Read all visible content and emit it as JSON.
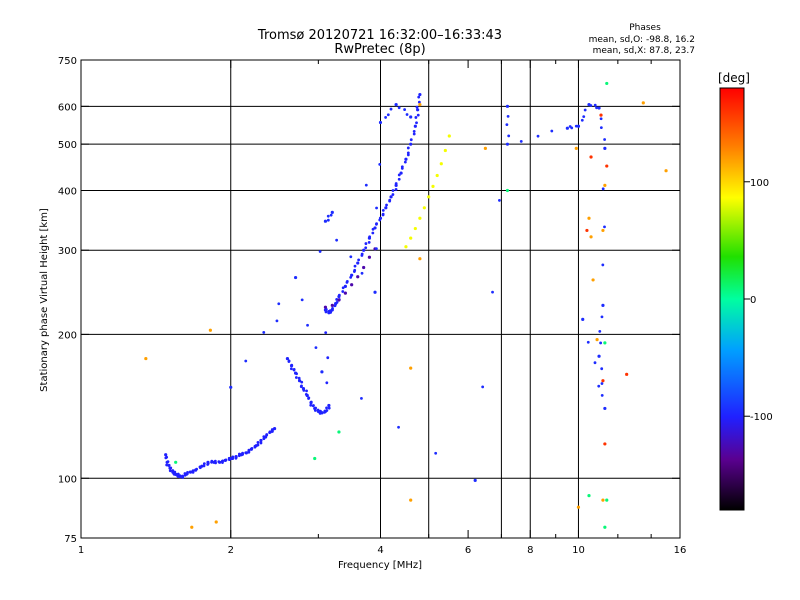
{
  "chart_data": {
    "type": "scatter",
    "title": "Tromsø 20120721 16:32:00–16:33:43",
    "subtitle": "RwPretec (8p)",
    "xlabel": "Frequency [MHz]",
    "ylabel": "Stationary phase Virtual Height [km]",
    "xscale": "log",
    "yscale": "log",
    "xlim": [
      1,
      16
    ],
    "ylim": [
      75,
      750
    ],
    "xticks": [
      1,
      2,
      4,
      6,
      8,
      10,
      16
    ],
    "xtick_labels": [
      "1",
      "2",
      "4",
      "6",
      "8",
      "10",
      "16"
    ],
    "x_minor_ticks": [
      3,
      5,
      7,
      9,
      12,
      14
    ],
    "x_gridlines": [
      2,
      4,
      5,
      7,
      8,
      10
    ],
    "yticks": [
      75,
      100,
      200,
      300,
      400,
      500,
      600,
      750
    ],
    "ytick_labels": [
      "75",
      "100",
      "200",
      "300",
      "400",
      "500",
      "600",
      "750"
    ],
    "y_gridlines": [
      100,
      200,
      300,
      400,
      500,
      600
    ],
    "phase_stats": {
      "heading": "Phases",
      "line_o": "mean, sd,O:  -98.8, 16.2",
      "line_x": "mean, sd,X:   87.8, 23.7"
    },
    "colorbar": {
      "label": "[deg]",
      "range": [
        -180,
        180
      ],
      "ticks": [
        100,
        0,
        -100
      ],
      "tick_labels": [
        "100",
        "0",
        "-100"
      ]
    },
    "series": [
      {
        "name": "O-mode trace (low)",
        "phase": -100,
        "points": [
          [
            1.48,
            112
          ],
          [
            1.49,
            108
          ],
          [
            1.51,
            105
          ],
          [
            1.53,
            103
          ],
          [
            1.55,
            102
          ],
          [
            1.57,
            101
          ],
          [
            1.6,
            101
          ],
          [
            1.63,
            102
          ],
          [
            1.66,
            103
          ],
          [
            1.7,
            104
          ],
          [
            1.75,
            106
          ],
          [
            1.8,
            108
          ],
          [
            1.85,
            108
          ],
          [
            1.9,
            108
          ],
          [
            1.95,
            109
          ],
          [
            2.0,
            110
          ],
          [
            2.05,
            111
          ],
          [
            2.1,
            112
          ],
          [
            2.15,
            113
          ],
          [
            2.2,
            115
          ],
          [
            2.25,
            117
          ],
          [
            2.3,
            120
          ],
          [
            2.35,
            122
          ],
          [
            2.4,
            125
          ],
          [
            2.45,
            127
          ]
        ]
      },
      {
        "name": "O-mode trace (main)",
        "phase": -98.8,
        "points": [
          [
            2.6,
            178
          ],
          [
            2.65,
            172
          ],
          [
            2.7,
            166
          ],
          [
            2.75,
            160
          ],
          [
            2.8,
            154
          ],
          [
            2.85,
            149
          ],
          [
            2.9,
            144
          ],
          [
            2.95,
            140
          ],
          [
            3.0,
            138
          ],
          [
            3.05,
            137
          ],
          [
            3.1,
            138
          ],
          [
            3.15,
            142
          ],
          [
            3.1,
            225
          ],
          [
            3.15,
            222
          ],
          [
            3.2,
            225
          ],
          [
            3.25,
            232
          ],
          [
            3.3,
            240
          ],
          [
            3.4,
            252
          ],
          [
            3.5,
            266
          ],
          [
            3.6,
            282
          ],
          [
            3.7,
            300
          ],
          [
            3.8,
            318
          ],
          [
            3.9,
            334
          ],
          [
            4.0,
            350
          ],
          [
            4.1,
            368
          ],
          [
            4.2,
            388
          ],
          [
            4.3,
            410
          ],
          [
            4.4,
            435
          ],
          [
            4.5,
            465
          ],
          [
            4.6,
            500
          ],
          [
            4.7,
            545
          ],
          [
            4.75,
            590
          ],
          [
            4.8,
            635
          ]
        ]
      },
      {
        "name": "Purple trace",
        "phase": -130,
        "points": [
          [
            3.1,
            228
          ],
          [
            3.2,
            230
          ],
          [
            3.3,
            236
          ],
          [
            3.4,
            244
          ],
          [
            3.5,
            254
          ],
          [
            3.6,
            264
          ],
          [
            3.7,
            276
          ],
          [
            3.8,
            290
          ],
          [
            3.9,
            302
          ]
        ]
      },
      {
        "name": "X-mode trace",
        "phase": 87.8,
        "points": [
          [
            4.5,
            305
          ],
          [
            4.6,
            318
          ],
          [
            4.7,
            333
          ],
          [
            4.8,
            350
          ],
          [
            4.9,
            368
          ],
          [
            5.0,
            388
          ],
          [
            5.1,
            408
          ],
          [
            5.2,
            430
          ],
          [
            5.3,
            455
          ],
          [
            5.4,
            485
          ],
          [
            5.5,
            520
          ]
        ]
      },
      {
        "name": "Scattered echoes (blue)",
        "phase": -95,
        "points": [
          [
            3.2,
            360
          ],
          [
            3.1,
            345
          ],
          [
            3.9,
            245
          ],
          [
            4.0,
            555
          ],
          [
            4.3,
            605
          ],
          [
            4.6,
            570
          ],
          [
            2.0,
            155
          ],
          [
            2.7,
            263
          ],
          [
            3.05,
            167
          ],
          [
            6.2,
            99
          ],
          [
            7.2,
            600
          ],
          [
            7.2,
            500
          ],
          [
            9.5,
            540
          ],
          [
            10.0,
            545
          ],
          [
            10.5,
            605
          ],
          [
            11.0,
            595
          ],
          [
            11.3,
            490
          ],
          [
            11.2,
            230
          ],
          [
            11.0,
            180
          ],
          [
            11.3,
            140
          ],
          [
            10.2,
            215
          ]
        ]
      },
      {
        "name": "Scattered echoes (orange)",
        "phase": 120,
        "points": [
          [
            1.35,
            178
          ],
          [
            1.82,
            204
          ],
          [
            1.67,
            79
          ],
          [
            1.87,
            81
          ],
          [
            4.6,
            170
          ],
          [
            4.6,
            90
          ],
          [
            4.8,
            288
          ],
          [
            4.8,
            605
          ],
          [
            6.5,
            490
          ],
          [
            9.9,
            490
          ],
          [
            10.5,
            350
          ],
          [
            10.6,
            320
          ],
          [
            10.7,
            260
          ],
          [
            10.9,
            195
          ],
          [
            11.3,
            410
          ],
          [
            11.2,
            330
          ],
          [
            13.5,
            610
          ],
          [
            15.0,
            440
          ],
          [
            10.0,
            87
          ],
          [
            11.2,
            90
          ]
        ]
      },
      {
        "name": "Scattered echoes (green/cyan)",
        "phase": 10,
        "points": [
          [
            1.55,
            108
          ],
          [
            2.95,
            110
          ],
          [
            3.3,
            125
          ],
          [
            7.2,
            400
          ],
          [
            10.5,
            92
          ],
          [
            11.4,
            670
          ],
          [
            11.3,
            79
          ],
          [
            11.4,
            90
          ],
          [
            11.3,
            192
          ]
        ]
      },
      {
        "name": "Scattered echoes (red)",
        "phase": 160,
        "points": [
          [
            11.2,
            160
          ],
          [
            11.3,
            118
          ],
          [
            12.5,
            165
          ],
          [
            10.6,
            470
          ],
          [
            10.4,
            330
          ],
          [
            11.4,
            450
          ],
          [
            11.1,
            575
          ]
        ]
      }
    ]
  }
}
